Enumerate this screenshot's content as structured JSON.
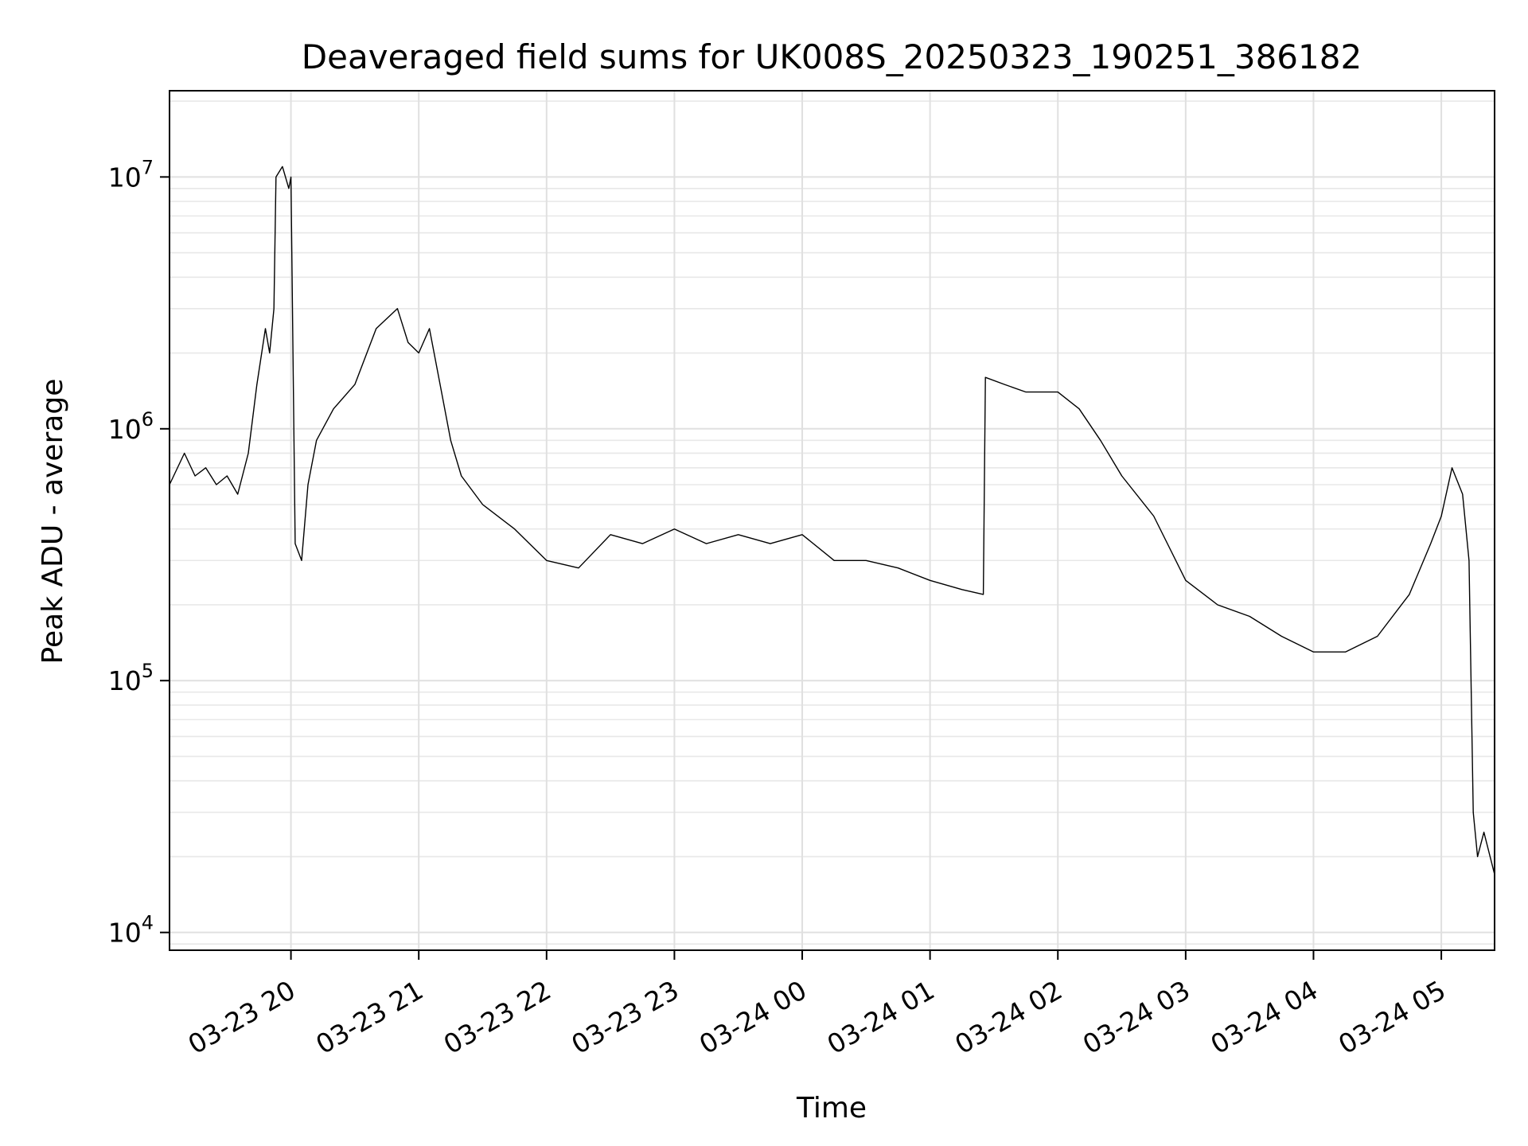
{
  "chart_data": {
    "type": "line",
    "title": "Deaveraged field sums for UK008S_20250323_190251_386182",
    "xlabel": "Time",
    "ylabel": "Peak ADU - average",
    "yscale": "log",
    "ylim": [
      8500,
      22000000
    ],
    "xlim": [
      "2025-03-23 19:03",
      "2025-03-24 05:25"
    ],
    "grid": true,
    "x_ticks": [
      {
        "label": "03-23 20",
        "t": "2025-03-23 20:00"
      },
      {
        "label": "03-23 21",
        "t": "2025-03-23 21:00"
      },
      {
        "label": "03-23 22",
        "t": "2025-03-23 22:00"
      },
      {
        "label": "03-23 23",
        "t": "2025-03-23 23:00"
      },
      {
        "label": "03-24 00",
        "t": "2025-03-24 00:00"
      },
      {
        "label": "03-24 01",
        "t": "2025-03-24 01:00"
      },
      {
        "label": "03-24 02",
        "t": "2025-03-24 02:00"
      },
      {
        "label": "03-24 03",
        "t": "2025-03-24 03:00"
      },
      {
        "label": "03-24 04",
        "t": "2025-03-24 04:00"
      },
      {
        "label": "03-24 05",
        "t": "2025-03-24 05:00"
      }
    ],
    "y_ticks": [
      {
        "base": "10",
        "exp": "4",
        "value": 10000
      },
      {
        "base": "10",
        "exp": "5",
        "value": 100000
      },
      {
        "base": "10",
        "exp": "6",
        "value": 1000000
      },
      {
        "base": "10",
        "exp": "7",
        "value": 10000000
      }
    ],
    "series": [
      {
        "color": "#000000",
        "points": [
          [
            "2025-03-23 19:03",
            600000
          ],
          [
            "2025-03-23 19:10",
            800000
          ],
          [
            "2025-03-23 19:15",
            650000
          ],
          [
            "2025-03-23 19:20",
            700000
          ],
          [
            "2025-03-23 19:25",
            600000
          ],
          [
            "2025-03-23 19:30",
            650000
          ],
          [
            "2025-03-23 19:35",
            550000
          ],
          [
            "2025-03-23 19:40",
            800000
          ],
          [
            "2025-03-23 19:44",
            1500000
          ],
          [
            "2025-03-23 19:48",
            2500000
          ],
          [
            "2025-03-23 19:50",
            2000000
          ],
          [
            "2025-03-23 19:52",
            3000000
          ],
          [
            "2025-03-23 19:53",
            10000000
          ],
          [
            "2025-03-23 19:56",
            11000000
          ],
          [
            "2025-03-23 19:59",
            9000000
          ],
          [
            "2025-03-23 20:00",
            10000000
          ],
          [
            "2025-03-23 20:02",
            350000
          ],
          [
            "2025-03-23 20:05",
            300000
          ],
          [
            "2025-03-23 20:08",
            600000
          ],
          [
            "2025-03-23 20:12",
            900000
          ],
          [
            "2025-03-23 20:20",
            1200000
          ],
          [
            "2025-03-23 20:30",
            1500000
          ],
          [
            "2025-03-23 20:40",
            2500000
          ],
          [
            "2025-03-23 20:50",
            3000000
          ],
          [
            "2025-03-23 20:55",
            2200000
          ],
          [
            "2025-03-23 21:00",
            2000000
          ],
          [
            "2025-03-23 21:05",
            2500000
          ],
          [
            "2025-03-23 21:10",
            1500000
          ],
          [
            "2025-03-23 21:15",
            900000
          ],
          [
            "2025-03-23 21:20",
            650000
          ],
          [
            "2025-03-23 21:30",
            500000
          ],
          [
            "2025-03-23 21:45",
            400000
          ],
          [
            "2025-03-23 22:00",
            300000
          ],
          [
            "2025-03-23 22:15",
            280000
          ],
          [
            "2025-03-23 22:30",
            380000
          ],
          [
            "2025-03-23 22:45",
            350000
          ],
          [
            "2025-03-23 23:00",
            400000
          ],
          [
            "2025-03-23 23:15",
            350000
          ],
          [
            "2025-03-23 23:30",
            380000
          ],
          [
            "2025-03-23 23:45",
            350000
          ],
          [
            "2025-03-24 00:00",
            380000
          ],
          [
            "2025-03-24 00:15",
            300000
          ],
          [
            "2025-03-24 00:30",
            300000
          ],
          [
            "2025-03-24 00:45",
            280000
          ],
          [
            "2025-03-24 01:00",
            250000
          ],
          [
            "2025-03-24 01:15",
            230000
          ],
          [
            "2025-03-24 01:25",
            220000
          ],
          [
            "2025-03-24 01:26",
            1600000
          ],
          [
            "2025-03-24 01:35",
            1500000
          ],
          [
            "2025-03-24 01:45",
            1400000
          ],
          [
            "2025-03-24 02:00",
            1400000
          ],
          [
            "2025-03-24 02:10",
            1200000
          ],
          [
            "2025-03-24 02:20",
            900000
          ],
          [
            "2025-03-24 02:30",
            650000
          ],
          [
            "2025-03-24 02:45",
            450000
          ],
          [
            "2025-03-24 03:00",
            250000
          ],
          [
            "2025-03-24 03:15",
            200000
          ],
          [
            "2025-03-24 03:30",
            180000
          ],
          [
            "2025-03-24 03:45",
            150000
          ],
          [
            "2025-03-24 04:00",
            130000
          ],
          [
            "2025-03-24 04:15",
            130000
          ],
          [
            "2025-03-24 04:30",
            150000
          ],
          [
            "2025-03-24 04:45",
            220000
          ],
          [
            "2025-03-24 04:55",
            350000
          ],
          [
            "2025-03-24 05:00",
            450000
          ],
          [
            "2025-03-24 05:05",
            700000
          ],
          [
            "2025-03-24 05:10",
            550000
          ],
          [
            "2025-03-24 05:13",
            300000
          ],
          [
            "2025-03-24 05:15",
            30000
          ],
          [
            "2025-03-24 05:17",
            20000
          ],
          [
            "2025-03-24 05:20",
            25000
          ],
          [
            "2025-03-24 05:25",
            17000
          ]
        ]
      }
    ]
  }
}
